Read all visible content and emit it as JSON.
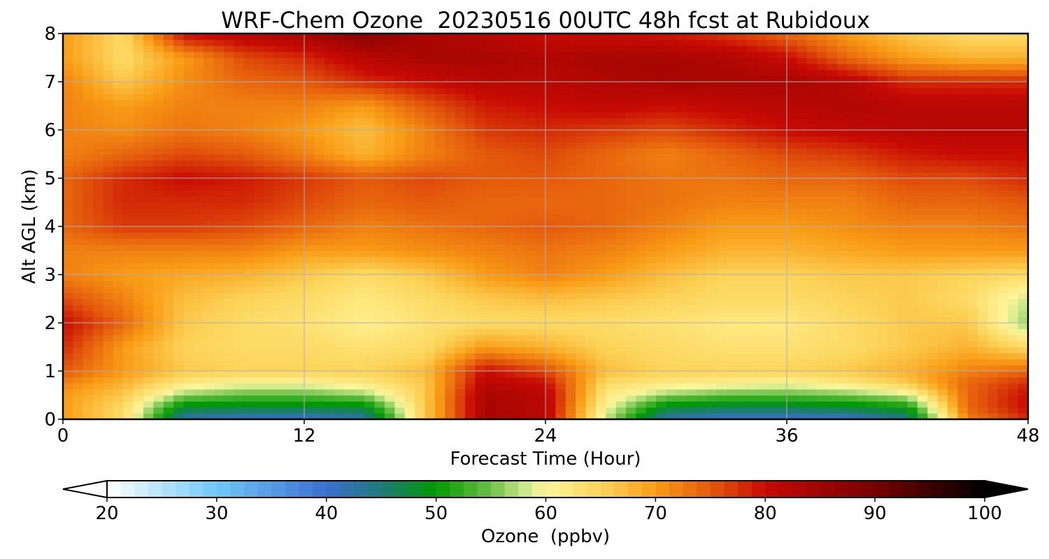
{
  "chart_data": {
    "type": "heatmap",
    "title": "WRF-Chem Ozone  20230516 00UTC 48h fcst at Rubidoux",
    "xlabel": "Forecast Time (Hour)",
    "ylabel": "Alt AGL (km)",
    "xlim": [
      0,
      48
    ],
    "ylim": [
      0,
      8
    ],
    "xticks": [
      0,
      12,
      24,
      36,
      48
    ],
    "xtick_labels": [
      "0",
      "12",
      "24",
      "36",
      "48"
    ],
    "yticks": [
      0,
      1,
      2,
      3,
      4,
      5,
      6,
      7,
      8
    ],
    "ytick_labels": [
      "0",
      "1",
      "2",
      "3",
      "4",
      "5",
      "6",
      "7",
      "8"
    ],
    "grid": true,
    "x": [
      0,
      3,
      6,
      9,
      12,
      15,
      18,
      21,
      24,
      27,
      30,
      33,
      36,
      39,
      42,
      45,
      48
    ],
    "y": [
      0,
      0.25,
      0.5,
      0.75,
      1,
      1.5,
      2,
      2.5,
      3,
      3.5,
      4,
      4.5,
      5,
      5.5,
      6,
      6.5,
      7,
      7.5,
      8
    ],
    "z": [
      [
        70,
        64,
        42,
        40,
        40,
        42,
        66,
        84,
        82,
        58,
        42,
        40,
        40,
        40,
        44,
        72,
        78
      ],
      [
        70,
        64,
        48,
        48,
        48,
        48,
        66,
        84,
        82,
        60,
        48,
        47,
        47,
        48,
        50,
        74,
        80
      ],
      [
        70,
        66,
        56,
        54,
        54,
        56,
        66,
        84,
        82,
        62,
        56,
        54,
        54,
        55,
        58,
        74,
        80
      ],
      [
        72,
        68,
        62,
        60,
        60,
        62,
        66,
        82,
        80,
        64,
        62,
        61,
        60,
        62,
        66,
        74,
        78
      ],
      [
        75,
        70,
        66,
        65,
        65,
        65,
        67,
        80,
        76,
        67,
        65,
        65,
        65,
        66,
        68,
        72,
        74
      ],
      [
        78,
        70,
        65,
        64,
        64,
        63,
        64,
        70,
        68,
        65,
        64,
        63,
        63,
        64,
        66,
        68,
        64
      ],
      [
        80,
        74,
        66,
        64,
        63,
        61,
        63,
        64,
        64,
        64,
        63,
        62,
        62,
        64,
        66,
        66,
        56
      ],
      [
        76,
        72,
        67,
        65,
        64,
        62,
        64,
        66,
        67,
        66,
        65,
        64,
        64,
        65,
        66,
        64,
        58
      ],
      [
        72,
        70,
        69,
        68,
        66,
        64,
        66,
        70,
        72,
        70,
        67,
        65,
        65,
        66,
        66,
        65,
        64
      ],
      [
        72,
        72,
        72,
        72,
        70,
        70,
        71,
        72,
        73,
        72,
        70,
        68,
        68,
        69,
        70,
        70,
        70
      ],
      [
        74,
        77,
        77,
        76,
        74,
        72,
        73,
        74,
        75,
        74,
        72,
        70,
        70,
        71,
        72,
        72,
        73
      ],
      [
        74,
        78,
        78,
        78,
        76,
        74,
        75,
        74,
        74,
        74,
        73,
        72,
        72,
        72,
        74,
        74,
        75
      ],
      [
        74,
        78,
        80,
        79,
        77,
        75,
        76,
        75,
        75,
        74,
        73,
        73,
        74,
        74,
        76,
        76,
        78
      ],
      [
        72,
        74,
        76,
        75,
        72,
        68,
        72,
        75,
        76,
        74,
        72,
        74,
        76,
        77,
        79,
        80,
        80
      ],
      [
        72,
        71,
        73,
        72,
        70,
        67,
        72,
        77,
        78,
        77,
        76,
        78,
        80,
        81,
        82,
        82,
        82
      ],
      [
        72,
        70,
        72,
        72,
        72,
        70,
        75,
        79,
        80,
        81,
        80,
        81,
        82,
        83,
        82,
        82,
        82
      ],
      [
        72,
        66,
        71,
        74,
        75,
        78,
        80,
        82,
        82,
        83,
        84,
        84,
        84,
        82,
        78,
        78,
        78
      ],
      [
        70,
        64,
        70,
        76,
        78,
        82,
        84,
        84,
        83,
        84,
        84,
        83,
        80,
        74,
        70,
        68,
        68
      ],
      [
        70,
        64,
        80,
        82,
        84,
        88,
        84,
        82,
        80,
        80,
        79,
        77,
        74,
        70,
        66,
        64,
        64
      ]
    ],
    "colorbar": {
      "label": "Ozone  (ppbv)",
      "min": 20,
      "max": 100,
      "ticks": [
        20,
        30,
        40,
        50,
        60,
        70,
        80,
        90,
        100
      ],
      "tick_labels": [
        "20",
        "30",
        "40",
        "50",
        "60",
        "70",
        "80",
        "90",
        "100"
      ],
      "extend": "both"
    },
    "colormap": [
      {
        "v": 20,
        "c": "#ffffff"
      },
      {
        "v": 30,
        "c": "#6fc8f8"
      },
      {
        "v": 40,
        "c": "#3a6fcf"
      },
      {
        "v": 45,
        "c": "#1f7a7a"
      },
      {
        "v": 50,
        "c": "#009a00"
      },
      {
        "v": 55,
        "c": "#6ec04a"
      },
      {
        "v": 58,
        "c": "#c8e88a"
      },
      {
        "v": 60,
        "c": "#fff59a"
      },
      {
        "v": 65,
        "c": "#fcd45a"
      },
      {
        "v": 70,
        "c": "#f99c16"
      },
      {
        "v": 75,
        "c": "#e45a0c"
      },
      {
        "v": 80,
        "c": "#c80a04"
      },
      {
        "v": 90,
        "c": "#780000"
      },
      {
        "v": 100,
        "c": "#000000"
      }
    ]
  }
}
